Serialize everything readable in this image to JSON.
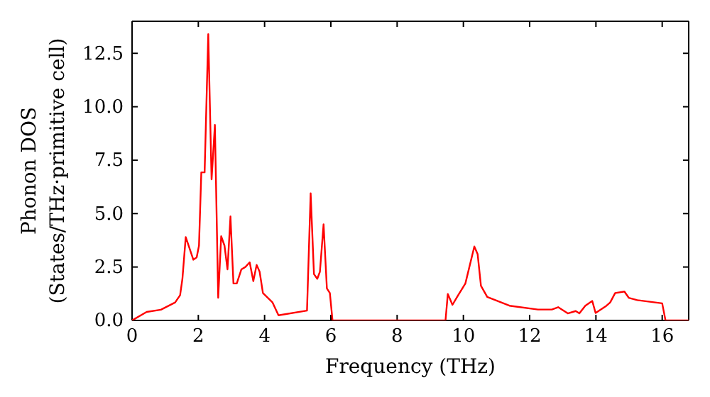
{
  "chart_data": {
    "type": "line",
    "xlabel": "Frequency (THz)",
    "ylabel": "Phonon DOS\n(States/THz·primitive cell)",
    "xlim": [
      0,
      16.8
    ],
    "ylim": [
      0,
      14
    ],
    "xticks": [
      0,
      2,
      4,
      6,
      8,
      10,
      12,
      14,
      16
    ],
    "yticks": [
      {
        "value": 0,
        "label": "0.0"
      },
      {
        "value": 2.5,
        "label": "2.5"
      },
      {
        "value": 5,
        "label": "5.0"
      },
      {
        "value": 7.5,
        "label": "7.5"
      },
      {
        "value": 10,
        "label": "10.0"
      },
      {
        "value": 12.5,
        "label": "12.5"
      }
    ],
    "grid": false,
    "marker": "none",
    "line_style": "solid",
    "series": [
      {
        "color": "#ff0000",
        "x": [
          0,
          0.44,
          0.87,
          1.3,
          1.45,
          1.52,
          1.62,
          1.85,
          1.95,
          2.02,
          2.09,
          2.19,
          2.3,
          2.4,
          2.5,
          2.6,
          2.69,
          2.79,
          2.88,
          2.97,
          3.06,
          3.16,
          3.3,
          3.42,
          3.55,
          3.66,
          3.76,
          3.85,
          3.95,
          4.24,
          4.42,
          5.28,
          5.39,
          5.49,
          5.59,
          5.67,
          5.78,
          5.88,
          5.97,
          6.05,
          9.46,
          9.53,
          9.67,
          9.81,
          10.06,
          10.33,
          10.43,
          10.53,
          10.72,
          11.39,
          12.25,
          12.67,
          12.86,
          13.15,
          13.39,
          13.5,
          13.68,
          13.89,
          13.99,
          14.32,
          14.43,
          14.58,
          14.86,
          14.99,
          15.25,
          16.0,
          16.1,
          16.8
        ],
        "values": [
          0,
          0.4,
          0.5,
          0.84,
          1.18,
          1.95,
          3.9,
          2.84,
          2.95,
          3.5,
          6.93,
          6.93,
          13.4,
          6.6,
          9.15,
          1.06,
          3.94,
          3.5,
          2.39,
          4.87,
          1.73,
          1.73,
          2.39,
          2.5,
          2.72,
          1.84,
          2.6,
          2.28,
          1.28,
          0.84,
          0.24,
          0.46,
          5.95,
          2.17,
          1.95,
          2.28,
          4.5,
          1.5,
          1.28,
          0,
          0,
          1.24,
          0.73,
          1.1,
          1.73,
          3.46,
          3.1,
          1.62,
          1.1,
          0.69,
          0.51,
          0.51,
          0.62,
          0.33,
          0.44,
          0.33,
          0.69,
          0.91,
          0.35,
          0.69,
          0.84,
          1.28,
          1.35,
          1.06,
          0.95,
          0.8,
          0,
          0
        ]
      }
    ]
  }
}
